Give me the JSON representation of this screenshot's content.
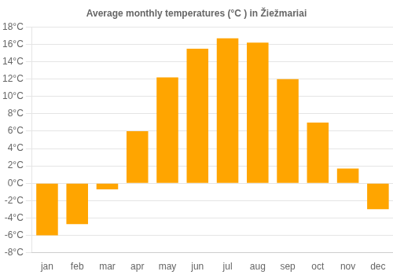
{
  "chart_data": {
    "type": "bar",
    "title": "Average monthly temperatures (°C ) in Žiežmariai",
    "categories": [
      "jan",
      "feb",
      "mar",
      "apr",
      "may",
      "jun",
      "jul",
      "aug",
      "sep",
      "oct",
      "nov",
      "dec"
    ],
    "values": [
      -6.0,
      -4.7,
      -0.7,
      6.0,
      12.2,
      15.5,
      16.7,
      16.2,
      12.0,
      7.0,
      1.7,
      -3.0
    ],
    "color": "#FFA500",
    "ylim": [
      -8,
      18
    ],
    "yticks": [
      {
        "value": -8,
        "label": "-8°C"
      },
      {
        "value": -6,
        "label": "-6°C"
      },
      {
        "value": -4,
        "label": "-4°C"
      },
      {
        "value": -2,
        "label": "-2°C"
      },
      {
        "value": 0,
        "label": "0°C"
      },
      {
        "value": 2,
        "label": "2°C"
      },
      {
        "value": 4,
        "label": "4°C"
      },
      {
        "value": 6,
        "label": "6°C"
      },
      {
        "value": 8,
        "label": "8°C"
      },
      {
        "value": 10,
        "label": "10°C"
      },
      {
        "value": 12,
        "label": "12°C"
      },
      {
        "value": 14,
        "label": "14°C"
      },
      {
        "value": 16,
        "label": "16°C"
      },
      {
        "value": 18,
        "label": "18°C"
      }
    ],
    "grid": true
  }
}
